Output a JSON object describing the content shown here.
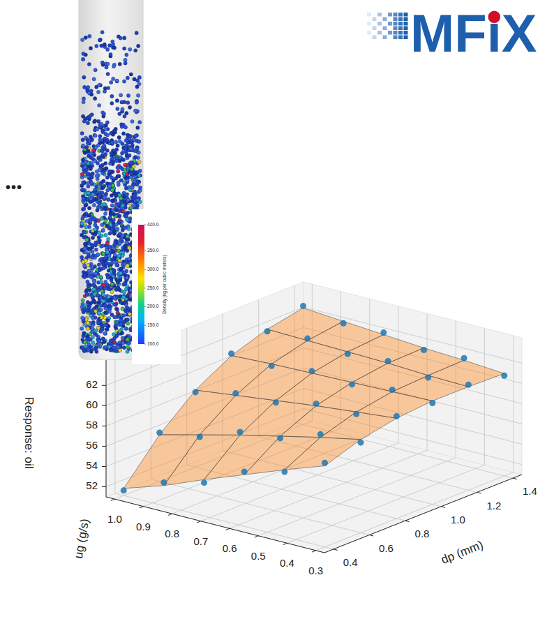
{
  "chart_data": {
    "type": "surface",
    "x_label": "dp (mm)",
    "y_label": "ug (g/s)",
    "z_label": "Response: oil",
    "xlim": [
      0.35,
      1.45
    ],
    "ylim": [
      0.27,
      1.03
    ],
    "zlim": [
      51,
      64.5
    ],
    "xticks": [
      0.4,
      0.6,
      0.8,
      {
        "value": 1,
        "label": "1.0"
      },
      1.2,
      1.4
    ],
    "yticks": [
      0.3,
      0.4,
      0.5,
      0.6,
      0.7,
      0.8,
      0.9,
      {
        "value": 1,
        "label": "1.0"
      }
    ],
    "zticks": [
      52,
      54,
      56,
      58,
      60,
      62
    ],
    "grid": true,
    "surface": {
      "x": [
        0.4,
        0.6,
        0.8,
        1,
        1.2,
        1.4
      ],
      "y": [
        0.3,
        0.44,
        0.58,
        0.72,
        0.86,
        1
      ],
      "z": [
        [
          59.0,
          60.2,
          60.9,
          61.2,
          61.2,
          61.1
        ],
        [
          57.6,
          59.4,
          60.5,
          61.1,
          61.3,
          61.4
        ],
        [
          56.1,
          58.5,
          60.1,
          61.0,
          61.5,
          61.6
        ],
        [
          54.6,
          57.6,
          59.6,
          60.9,
          61.6,
          61.9
        ],
        [
          53.0,
          56.6,
          59.1,
          60.8,
          61.7,
          62.2
        ],
        [
          51.7,
          55.6,
          58.6,
          60.6,
          61.8,
          62.5
        ]
      ],
      "color": "#ff7f0e"
    },
    "points": {
      "x": [
        0.4,
        0.6,
        0.8,
        1,
        1.2,
        1.4,
        0.4,
        0.6,
        0.8,
        1,
        1.2,
        1.4,
        0.4,
        0.6,
        0.8,
        1,
        1.2,
        1.4,
        0.4,
        0.6,
        0.8,
        1,
        1.2,
        1.4,
        0.4,
        0.6,
        0.8,
        1,
        1.2,
        1.4,
        0.4,
        0.6,
        0.8,
        1,
        1.2,
        1.4
      ],
      "y": [
        0.3,
        0.3,
        0.3,
        0.3,
        0.3,
        0.3,
        0.44,
        0.44,
        0.44,
        0.44,
        0.44,
        0.44,
        0.58,
        0.58,
        0.58,
        0.58,
        0.58,
        0.58,
        0.72,
        0.72,
        0.72,
        0.72,
        0.72,
        0.72,
        0.86,
        0.86,
        0.86,
        0.86,
        0.86,
        0.86,
        1,
        1,
        1,
        1,
        1,
        1
      ],
      "z": [
        59.3,
        59.9,
        61.1,
        61.0,
        61.4,
        60.9,
        57.4,
        59.7,
        60.3,
        61.3,
        61.1,
        61.6,
        56.4,
        58.3,
        60.3,
        60.8,
        61.7,
        61.4,
        54.3,
        57.9,
        59.4,
        61.1,
        61.4,
        62.1,
        53.3,
        56.4,
        59.3,
        60.6,
        61.9,
        62.0,
        51.5,
        55.8,
        58.4,
        60.8,
        61.6,
        62.7
      ],
      "color": "#1f77b4",
      "marker": "circle"
    }
  },
  "inset": {
    "logo": "MFiX",
    "ellipsis": "•••",
    "colorbar": {
      "label": "Density (kg per cubic meters)",
      "range": [
        100,
        420
      ],
      "ticks": [
        {
          "value": 100,
          "label": "100.0"
        },
        {
          "value": 150,
          "label": "150.0"
        },
        {
          "value": 200,
          "label": "200.0"
        },
        {
          "value": 250,
          "label": "250.0"
        },
        {
          "value": 300,
          "label": "300.0"
        },
        {
          "value": 350,
          "label": "350.0"
        },
        {
          "value": 420,
          "label": "420.0"
        }
      ]
    }
  }
}
